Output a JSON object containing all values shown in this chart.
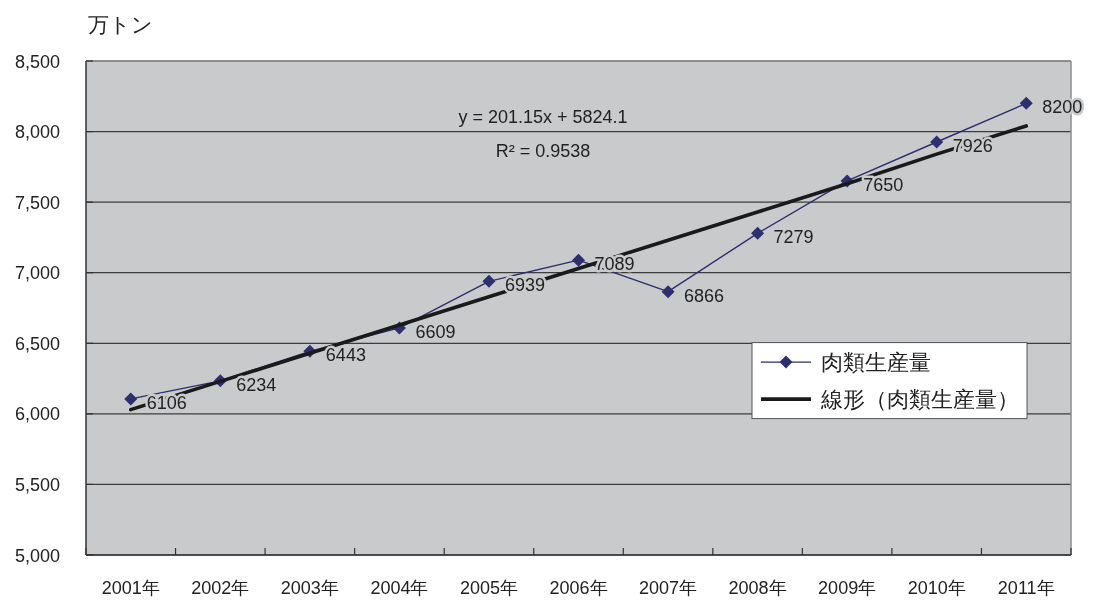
{
  "chart_data": {
    "type": "line",
    "ylabel": "万トン",
    "categories": [
      "2001年",
      "2002年",
      "2003年",
      "2004年",
      "2005年",
      "2006年",
      "2007年",
      "2008年",
      "2009年",
      "2010年",
      "2011年"
    ],
    "series": [
      {
        "name": "肉類生産量",
        "type": "line",
        "color": "#2d2f6e",
        "marker": "diamond",
        "values": [
          6106,
          6234,
          6443,
          6609,
          6939,
          7089,
          6866,
          7279,
          7650,
          7926,
          8200
        ],
        "value_labels": [
          "6106",
          "6234",
          "6443",
          "6609",
          "6939",
          "7089",
          "6866",
          "7279",
          "7650",
          "7926",
          "8200"
        ]
      },
      {
        "name": "線形（肉類生産量）",
        "type": "line",
        "color": "#1a1a1a",
        "marker": "none",
        "values": [
          6030,
          6230,
          6430,
          6630,
          6830,
          7030,
          7230,
          7430,
          7630,
          7840,
          8040
        ]
      }
    ],
    "ylim": [
      5000,
      8500
    ],
    "yticks": [
      {
        "value": 5000,
        "label": "5,000"
      },
      {
        "value": 5500,
        "label": "5,500"
      },
      {
        "value": 6000,
        "label": "6,000"
      },
      {
        "value": 6500,
        "label": "6,500"
      },
      {
        "value": 7000,
        "label": "7,000"
      },
      {
        "value": 7500,
        "label": "7,500"
      },
      {
        "value": 8000,
        "label": "8,000"
      },
      {
        "value": 8500,
        "label": "8,500"
      }
    ],
    "grid": "y",
    "legend": "right",
    "line_style": "solid",
    "annotations": [
      "y = 201.15x + 5824.1",
      "R² = 0.9538"
    ]
  }
}
